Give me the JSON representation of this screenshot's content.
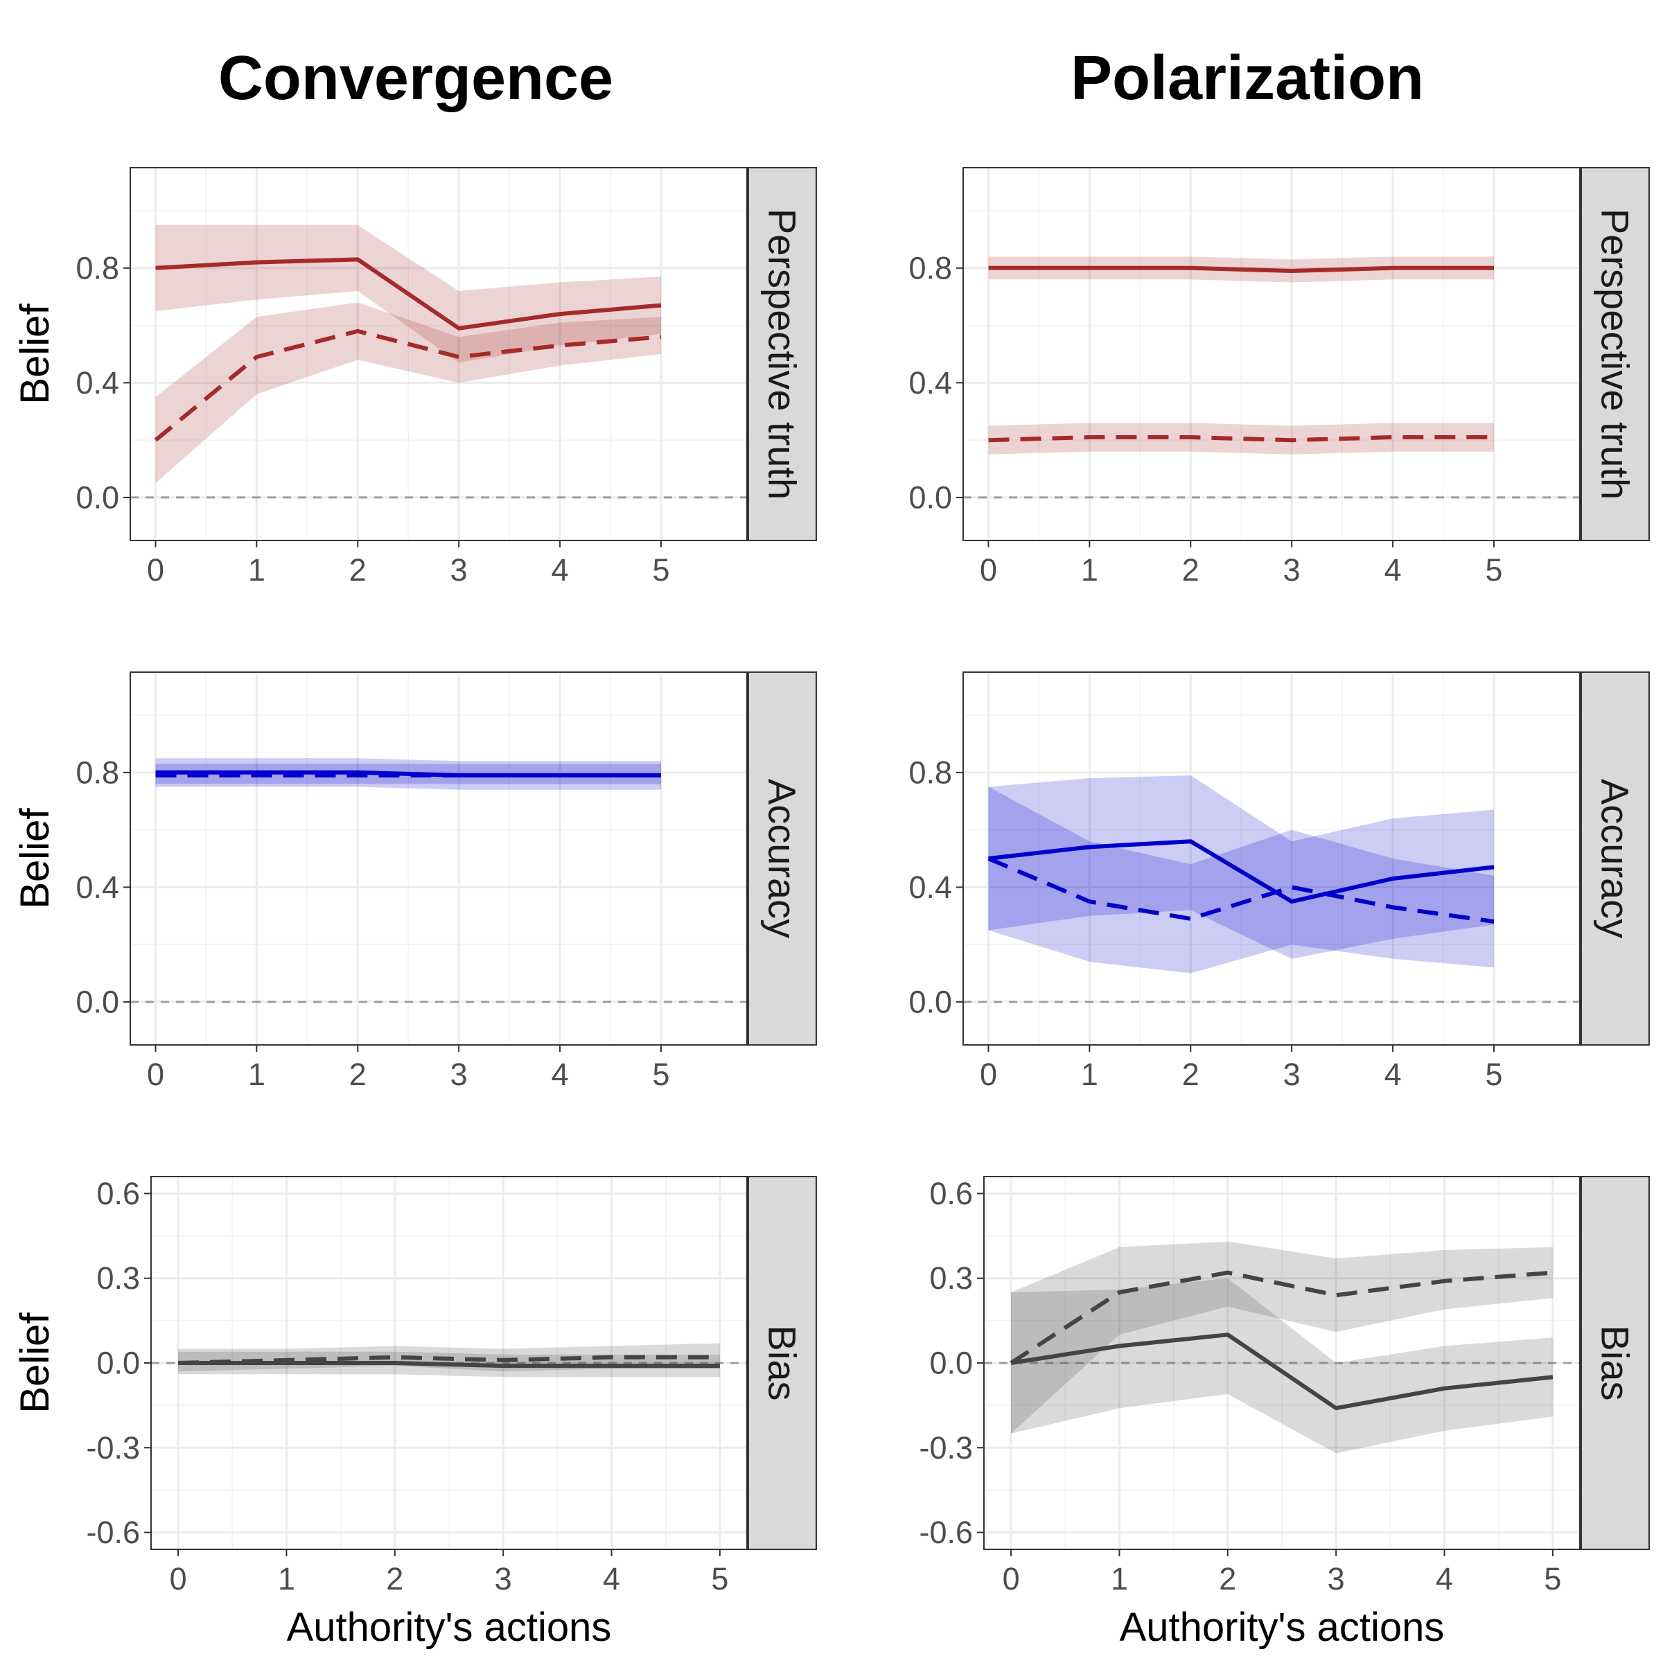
{
  "columns": [
    "Convergence",
    "Polarization"
  ],
  "chart_data": [
    {
      "type": "line",
      "column": "Convergence",
      "strip": "Perspective truth",
      "ylabel": "Belief",
      "xlabel": "",
      "x": [
        0,
        1,
        2,
        3,
        4,
        5
      ],
      "xlim": [
        -0.25,
        5.85
      ],
      "ylim": [
        -0.15,
        1.15
      ],
      "yticks": [
        0.0,
        0.4,
        0.8
      ],
      "ytick_labels": [
        "0.0",
        "0.4",
        "0.8"
      ],
      "color": "#a52a2a",
      "series": [
        {
          "style": "solid",
          "values": [
            0.8,
            0.82,
            0.83,
            0.59,
            0.64,
            0.67
          ],
          "lower": [
            0.65,
            0.69,
            0.72,
            0.47,
            0.53,
            0.57
          ],
          "upper": [
            0.95,
            0.95,
            0.95,
            0.72,
            0.75,
            0.77
          ]
        },
        {
          "style": "dashed",
          "values": [
            0.2,
            0.49,
            0.58,
            0.49,
            0.53,
            0.56
          ],
          "lower": [
            0.05,
            0.36,
            0.48,
            0.4,
            0.46,
            0.5
          ],
          "upper": [
            0.35,
            0.63,
            0.68,
            0.56,
            0.61,
            0.63
          ]
        }
      ]
    },
    {
      "type": "line",
      "column": "Polarization",
      "strip": "Perspective truth",
      "ylabel": "Belief",
      "xlabel": "",
      "x": [
        0,
        1,
        2,
        3,
        4,
        5
      ],
      "xlim": [
        -0.25,
        5.85
      ],
      "ylim": [
        -0.15,
        1.15
      ],
      "yticks": [
        0.0,
        0.4,
        0.8
      ],
      "ytick_labels": [
        "0.0",
        "0.4",
        "0.8"
      ],
      "color": "#a52a2a",
      "series": [
        {
          "style": "solid",
          "values": [
            0.8,
            0.8,
            0.8,
            0.79,
            0.8,
            0.8
          ],
          "lower": [
            0.76,
            0.76,
            0.76,
            0.75,
            0.76,
            0.76
          ],
          "upper": [
            0.84,
            0.84,
            0.84,
            0.83,
            0.84,
            0.84
          ]
        },
        {
          "style": "dashed",
          "values": [
            0.2,
            0.21,
            0.21,
            0.2,
            0.21,
            0.21
          ],
          "lower": [
            0.15,
            0.16,
            0.16,
            0.15,
            0.16,
            0.16
          ],
          "upper": [
            0.25,
            0.26,
            0.26,
            0.25,
            0.26,
            0.26
          ]
        }
      ]
    },
    {
      "type": "line",
      "column": "Convergence",
      "strip": "Accuracy",
      "ylabel": "Belief",
      "xlabel": "",
      "x": [
        0,
        1,
        2,
        3,
        4,
        5
      ],
      "xlim": [
        -0.25,
        5.85
      ],
      "ylim": [
        -0.15,
        1.15
      ],
      "yticks": [
        0.0,
        0.4,
        0.8
      ],
      "ytick_labels": [
        "0.0",
        "0.4",
        "0.8"
      ],
      "color": "#0000cd",
      "series": [
        {
          "style": "solid",
          "values": [
            0.8,
            0.8,
            0.8,
            0.79,
            0.79,
            0.79
          ],
          "lower": [
            0.75,
            0.75,
            0.75,
            0.74,
            0.74,
            0.74
          ],
          "upper": [
            0.85,
            0.85,
            0.85,
            0.84,
            0.84,
            0.84
          ]
        },
        {
          "style": "dashed",
          "values": [
            0.79,
            0.79,
            0.79,
            0.79,
            0.79,
            0.79
          ],
          "lower": [
            0.76,
            0.76,
            0.76,
            0.76,
            0.76,
            0.76
          ],
          "upper": [
            0.83,
            0.83,
            0.83,
            0.83,
            0.83,
            0.83
          ]
        }
      ]
    },
    {
      "type": "line",
      "column": "Polarization",
      "strip": "Accuracy",
      "ylabel": "Belief",
      "xlabel": "",
      "x": [
        0,
        1,
        2,
        3,
        4,
        5
      ],
      "xlim": [
        -0.25,
        5.85
      ],
      "ylim": [
        -0.15,
        1.15
      ],
      "yticks": [
        0.0,
        0.4,
        0.8
      ],
      "ytick_labels": [
        "0.0",
        "0.4",
        "0.8"
      ],
      "color": "#0000cd",
      "series": [
        {
          "style": "solid",
          "values": [
            0.5,
            0.54,
            0.56,
            0.35,
            0.43,
            0.47
          ],
          "lower": [
            0.25,
            0.3,
            0.32,
            0.15,
            0.22,
            0.27
          ],
          "upper": [
            0.75,
            0.78,
            0.79,
            0.56,
            0.64,
            0.67
          ]
        },
        {
          "style": "dashed",
          "values": [
            0.5,
            0.35,
            0.29,
            0.4,
            0.33,
            0.28
          ],
          "lower": [
            0.25,
            0.14,
            0.1,
            0.2,
            0.15,
            0.12
          ],
          "upper": [
            0.75,
            0.56,
            0.48,
            0.6,
            0.5,
            0.44
          ]
        }
      ]
    },
    {
      "type": "line",
      "column": "Convergence",
      "strip": "Bias",
      "ylabel": "Belief",
      "xlabel": "Authority's actions",
      "x": [
        0,
        1,
        2,
        3,
        4,
        5
      ],
      "xlim": [
        -0.25,
        5.25
      ],
      "ylim": [
        -0.66,
        0.66
      ],
      "yticks": [
        -0.6,
        -0.3,
        0.0,
        0.3,
        0.6
      ],
      "ytick_labels": [
        "-0.6",
        "-0.3",
        "0.0",
        "0.3",
        "0.6"
      ],
      "color": "#444444",
      "series": [
        {
          "style": "solid",
          "values": [
            0.0,
            0.0,
            0.0,
            -0.01,
            -0.01,
            -0.01
          ],
          "lower": [
            -0.04,
            -0.04,
            -0.04,
            -0.05,
            -0.05,
            -0.05
          ],
          "upper": [
            0.04,
            0.04,
            0.04,
            0.03,
            0.03,
            0.03
          ]
        },
        {
          "style": "dashed",
          "values": [
            0.0,
            0.01,
            0.02,
            0.01,
            0.02,
            0.02
          ],
          "lower": [
            -0.03,
            -0.02,
            -0.01,
            -0.03,
            -0.02,
            -0.02
          ],
          "upper": [
            0.05,
            0.05,
            0.06,
            0.05,
            0.06,
            0.07
          ]
        }
      ]
    },
    {
      "type": "line",
      "column": "Polarization",
      "strip": "Bias",
      "ylabel": "Belief",
      "xlabel": "Authority's actions",
      "x": [
        0,
        1,
        2,
        3,
        4,
        5
      ],
      "xlim": [
        -0.25,
        5.25
      ],
      "ylim": [
        -0.66,
        0.66
      ],
      "yticks": [
        -0.6,
        -0.3,
        0.0,
        0.3,
        0.6
      ],
      "ytick_labels": [
        "-0.6",
        "-0.3",
        "0.0",
        "0.3",
        "0.6"
      ],
      "color": "#444444",
      "series": [
        {
          "style": "solid",
          "values": [
            0.0,
            0.06,
            0.1,
            -0.16,
            -0.09,
            -0.05
          ],
          "lower": [
            -0.25,
            -0.16,
            -0.11,
            -0.32,
            -0.24,
            -0.19
          ],
          "upper": [
            0.25,
            0.26,
            0.3,
            0.0,
            0.06,
            0.09
          ]
        },
        {
          "style": "dashed",
          "values": [
            0.0,
            0.25,
            0.32,
            0.24,
            0.29,
            0.32
          ],
          "lower": [
            -0.25,
            0.1,
            0.2,
            0.11,
            0.19,
            0.23
          ],
          "upper": [
            0.25,
            0.41,
            0.43,
            0.37,
            0.4,
            0.41
          ]
        }
      ]
    }
  ]
}
